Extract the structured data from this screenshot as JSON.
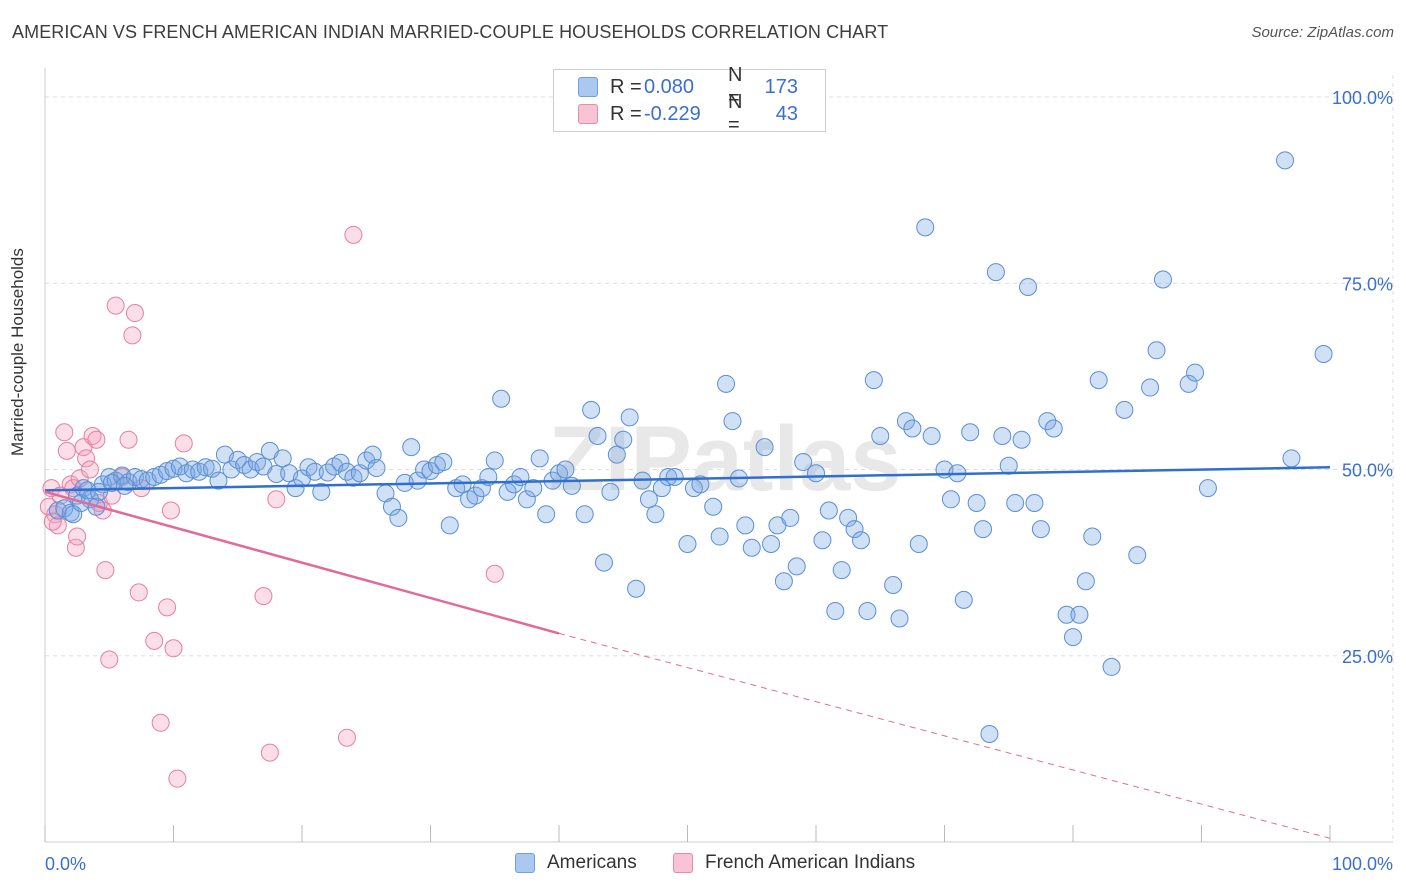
{
  "title": "AMERICAN VS FRENCH AMERICAN INDIAN MARRIED-COUPLE HOUSEHOLDS CORRELATION CHART",
  "source": "Source: ZipAtlas.com",
  "watermark": "ZIPatlas",
  "legend_stats": [
    {
      "r_label": "R =",
      "r_value": "0.080",
      "n_label": "N =",
      "n_value": "173",
      "color": "#aac8f0",
      "border": "#6f9fdc"
    },
    {
      "r_label": "R =",
      "r_value": "-0.229",
      "n_label": "N =",
      "n_value": "43",
      "color": "#f8c3d4",
      "border": "#e88aa8"
    }
  ],
  "colors": {
    "americans_fill": "rgba(120,165,225,0.35)",
    "americans_stroke": "#5b8fd6",
    "americans_line": "#2f6fd0",
    "french_fill": "rgba(245,160,190,0.35)",
    "french_stroke": "#e57fa3",
    "french_line": "#e26a98",
    "tick_label": "#3a6fd0",
    "grid": "#dddddd"
  },
  "chart_data": {
    "type": "scatter",
    "title": "AMERICAN VS FRENCH AMERICAN INDIAN MARRIED-COUPLE HOUSEHOLDS CORRELATION CHART",
    "xlabel": "",
    "ylabel": "Married-couple Households",
    "xlim": [
      0,
      100
    ],
    "ylim": [
      0,
      105
    ],
    "x_tick_labels": [
      "0.0%",
      "100.0%"
    ],
    "y_ticks": [
      25,
      50,
      75,
      100
    ],
    "y_tick_labels": [
      "25.0%",
      "50.0%",
      "75.0%",
      "100.0%"
    ],
    "grid": true,
    "legend_position": "bottom",
    "series": [
      {
        "name": "Americans",
        "trend": {
          "x": [
            0,
            100
          ],
          "y": [
            47.2,
            50.3
          ],
          "style": "solid"
        },
        "points": [
          [
            1.0,
            44.5
          ],
          [
            1.5,
            44.8
          ],
          [
            2.0,
            44.2
          ],
          [
            2.5,
            46.5
          ],
          [
            3.0,
            47.5
          ],
          [
            3.5,
            46.0
          ],
          [
            4.0,
            45.0
          ],
          [
            4.5,
            48.0
          ],
          [
            5.0,
            49.0
          ],
          [
            5.5,
            48.5
          ],
          [
            6.0,
            49.2
          ],
          [
            6.5,
            48.3
          ],
          [
            7.0,
            49.0
          ],
          [
            7.5,
            48.7
          ],
          [
            8.0,
            48.5
          ],
          [
            8.5,
            49.0
          ],
          [
            9.0,
            49.3
          ],
          [
            9.5,
            49.8
          ],
          [
            10.0,
            50.1
          ],
          [
            10.5,
            50.4
          ],
          [
            11.0,
            49.5
          ],
          [
            11.5,
            50.0
          ],
          [
            12.0,
            49.7
          ],
          [
            12.5,
            50.3
          ],
          [
            13.0,
            50.1
          ],
          [
            13.5,
            48.5
          ],
          [
            14.0,
            52.0
          ],
          [
            14.5,
            50.0
          ],
          [
            15.0,
            51.3
          ],
          [
            15.5,
            50.6
          ],
          [
            16.0,
            50.0
          ],
          [
            16.5,
            51.0
          ],
          [
            17.0,
            50.4
          ],
          [
            17.5,
            52.5
          ],
          [
            18.0,
            49.4
          ],
          [
            18.5,
            51.5
          ],
          [
            19.0,
            49.5
          ],
          [
            19.5,
            47.5
          ],
          [
            20.0,
            48.8
          ],
          [
            20.5,
            50.3
          ],
          [
            21.0,
            49.7
          ],
          [
            21.5,
            47.0
          ],
          [
            22.0,
            49.6
          ],
          [
            22.5,
            50.4
          ],
          [
            23.0,
            50.9
          ],
          [
            23.5,
            49.7
          ],
          [
            24.0,
            48.9
          ],
          [
            24.5,
            49.5
          ],
          [
            25.0,
            51.2
          ],
          [
            25.5,
            52.0
          ],
          [
            25.8,
            50.2
          ],
          [
            26.5,
            46.8
          ],
          [
            27.0,
            45.0
          ],
          [
            27.5,
            43.5
          ],
          [
            28.0,
            48.2
          ],
          [
            28.5,
            53.0
          ],
          [
            29.0,
            48.5
          ],
          [
            29.5,
            50.0
          ],
          [
            30.0,
            49.8
          ],
          [
            30.5,
            50.6
          ],
          [
            31.0,
            51.0
          ],
          [
            31.5,
            42.5
          ],
          [
            32.0,
            47.5
          ],
          [
            32.5,
            48.0
          ],
          [
            33.0,
            46.0
          ],
          [
            33.5,
            46.5
          ],
          [
            34.0,
            47.5
          ],
          [
            34.5,
            49.0
          ],
          [
            35.0,
            51.2
          ],
          [
            35.5,
            59.5
          ],
          [
            36.0,
            47.0
          ],
          [
            36.5,
            48.0
          ],
          [
            37.0,
            49.0
          ],
          [
            37.5,
            46.0
          ],
          [
            38.0,
            47.5
          ],
          [
            38.5,
            51.5
          ],
          [
            39.0,
            44.0
          ],
          [
            39.5,
            48.5
          ],
          [
            40.0,
            49.5
          ],
          [
            40.5,
            50.0
          ],
          [
            41.0,
            47.8
          ],
          [
            42.0,
            44.0
          ],
          [
            42.5,
            58.0
          ],
          [
            43.0,
            54.5
          ],
          [
            43.5,
            37.5
          ],
          [
            44.0,
            47.0
          ],
          [
            44.5,
            52.0
          ],
          [
            45.0,
            54.0
          ],
          [
            45.5,
            57.0
          ],
          [
            46.0,
            34.0
          ],
          [
            46.5,
            48.5
          ],
          [
            47.0,
            46.0
          ],
          [
            47.5,
            44.0
          ],
          [
            48.0,
            47.5
          ],
          [
            48.5,
            49.0
          ],
          [
            49.0,
            49.0
          ],
          [
            50.0,
            40.0
          ],
          [
            50.5,
            47.5
          ],
          [
            51.0,
            48.0
          ],
          [
            52.0,
            45.0
          ],
          [
            52.5,
            41.0
          ],
          [
            53.0,
            61.5
          ],
          [
            53.5,
            56.5
          ],
          [
            54.0,
            48.8
          ],
          [
            54.5,
            42.5
          ],
          [
            55.0,
            39.5
          ],
          [
            56.0,
            53.0
          ],
          [
            56.5,
            40.0
          ],
          [
            57.0,
            42.5
          ],
          [
            57.5,
            35.0
          ],
          [
            58.0,
            43.5
          ],
          [
            58.5,
            37.0
          ],
          [
            59.0,
            51.0
          ],
          [
            60.0,
            49.5
          ],
          [
            60.5,
            40.5
          ],
          [
            61.0,
            44.5
          ],
          [
            61.5,
            31.0
          ],
          [
            62.0,
            36.5
          ],
          [
            62.5,
            43.5
          ],
          [
            63.0,
            42.0
          ],
          [
            63.5,
            40.5
          ],
          [
            64.0,
            31.0
          ],
          [
            64.5,
            62.0
          ],
          [
            65.0,
            54.5
          ],
          [
            66.0,
            34.5
          ],
          [
            66.5,
            30.0
          ],
          [
            67.0,
            56.5
          ],
          [
            67.5,
            55.5
          ],
          [
            68.0,
            40.0
          ],
          [
            68.5,
            82.5
          ],
          [
            69.0,
            54.5
          ],
          [
            70.0,
            50.0
          ],
          [
            70.5,
            46.0
          ],
          [
            71.0,
            49.5
          ],
          [
            71.5,
            32.5
          ],
          [
            72.0,
            55.0
          ],
          [
            72.5,
            45.5
          ],
          [
            73.0,
            42.0
          ],
          [
            73.5,
            14.5
          ],
          [
            74.0,
            76.5
          ],
          [
            74.5,
            54.5
          ],
          [
            75.0,
            50.5
          ],
          [
            75.5,
            45.5
          ],
          [
            76.0,
            54.0
          ],
          [
            76.5,
            74.5
          ],
          [
            77.0,
            45.5
          ],
          [
            77.5,
            42.0
          ],
          [
            78.0,
            56.5
          ],
          [
            78.5,
            55.5
          ],
          [
            79.5,
            30.5
          ],
          [
            80.0,
            27.5
          ],
          [
            80.5,
            30.5
          ],
          [
            81.0,
            35.0
          ],
          [
            81.5,
            41.0
          ],
          [
            82.0,
            62.0
          ],
          [
            83.0,
            23.5
          ],
          [
            84.0,
            58.0
          ],
          [
            85.0,
            38.5
          ],
          [
            86.0,
            61.0
          ],
          [
            86.5,
            66.0
          ],
          [
            87.0,
            75.5
          ],
          [
            89.0,
            61.5
          ],
          [
            89.5,
            63.0
          ],
          [
            90.5,
            47.5
          ],
          [
            96.5,
            91.5
          ],
          [
            97.0,
            51.5
          ],
          [
            99.5,
            65.5
          ],
          [
            2.2,
            44.0
          ],
          [
            2.8,
            45.5
          ],
          [
            3.3,
            47.2
          ],
          [
            4.2,
            47.0
          ],
          [
            5.2,
            48.2
          ],
          [
            6.2,
            47.8
          ]
        ]
      },
      {
        "name": "French American Indians",
        "trend": {
          "x": [
            0,
            40,
            100
          ],
          "y": [
            47.0,
            28.0,
            0.5
          ],
          "solid_until": 40
        },
        "points": [
          [
            0.3,
            45.0
          ],
          [
            0.5,
            47.5
          ],
          [
            0.8,
            44.0
          ],
          [
            1.0,
            42.5
          ],
          [
            1.2,
            46.5
          ],
          [
            1.5,
            55.0
          ],
          [
            1.7,
            52.5
          ],
          [
            2.0,
            48.0
          ],
          [
            2.2,
            47.5
          ],
          [
            2.4,
            39.5
          ],
          [
            2.5,
            41.0
          ],
          [
            2.7,
            48.8
          ],
          [
            3.0,
            53.0
          ],
          [
            3.2,
            51.5
          ],
          [
            3.5,
            50.0
          ],
          [
            3.7,
            54.5
          ],
          [
            4.0,
            54.0
          ],
          [
            4.2,
            45.5
          ],
          [
            4.5,
            44.5
          ],
          [
            4.7,
            36.5
          ],
          [
            5.0,
            24.5
          ],
          [
            5.2,
            46.5
          ],
          [
            5.5,
            72.0
          ],
          [
            6.0,
            49.0
          ],
          [
            6.5,
            54.0
          ],
          [
            6.8,
            68.0
          ],
          [
            7.0,
            71.0
          ],
          [
            7.3,
            33.5
          ],
          [
            7.5,
            47.5
          ],
          [
            8.5,
            27.0
          ],
          [
            9.0,
            16.0
          ],
          [
            9.5,
            31.5
          ],
          [
            9.8,
            44.5
          ],
          [
            10.0,
            26.0
          ],
          [
            10.3,
            8.5
          ],
          [
            10.8,
            53.5
          ],
          [
            17.0,
            33.0
          ],
          [
            17.5,
            12.0
          ],
          [
            18.0,
            46.0
          ],
          [
            23.5,
            14.0
          ],
          [
            24.0,
            81.5
          ],
          [
            35.0,
            36.0
          ],
          [
            0.6,
            43.0
          ]
        ]
      }
    ]
  }
}
